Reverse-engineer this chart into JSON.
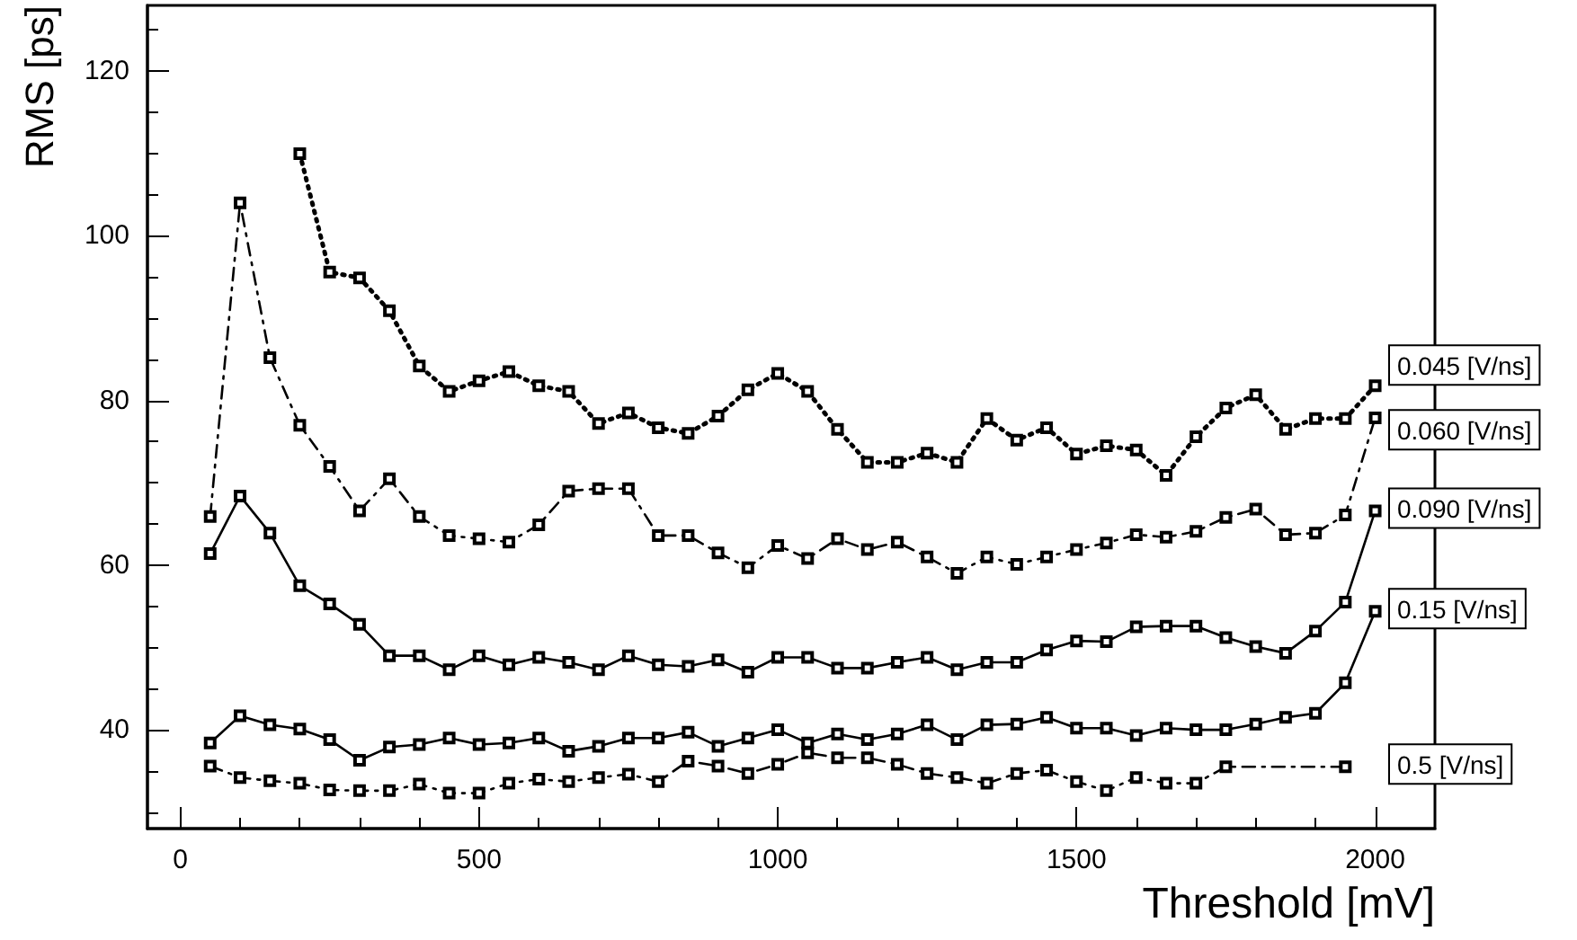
{
  "chart_data": {
    "type": "line",
    "xlabel": "Threshold [mV]",
    "ylabel": "RMS [ps]",
    "x": [
      50,
      100,
      150,
      200,
      250,
      300,
      350,
      400,
      450,
      500,
      550,
      600,
      650,
      700,
      750,
      800,
      850,
      900,
      950,
      1000,
      1050,
      1100,
      1150,
      1200,
      1250,
      1300,
      1350,
      1400,
      1450,
      1500,
      1550,
      1600,
      1650,
      1700,
      1750,
      1800,
      1850,
      1900,
      1950,
      2000
    ],
    "xlim": [
      -55,
      2100
    ],
    "xticks": [
      0,
      500,
      1000,
      1500,
      2000
    ],
    "ylim": [
      28,
      128
    ],
    "yticks": [
      40,
      60,
      80,
      100,
      120
    ],
    "grid": false,
    "legend": false,
    "marker": "square",
    "series": [
      {
        "name": "0.045 [V/ns]",
        "color": "#000000",
        "line_style": "dotted",
        "x": [
          200,
          250,
          300,
          350,
          400,
          450,
          500,
          550,
          600,
          650,
          700,
          750,
          800,
          850,
          900,
          950,
          1000,
          1050,
          1100,
          1150,
          1200,
          1250,
          1300,
          1350,
          1400,
          1450,
          1500,
          1550,
          1600,
          1650,
          1700,
          1750,
          1800,
          1850,
          1900,
          1950,
          2000
        ],
        "values": [
          110,
          95.6,
          94.9,
          90.9,
          84.2,
          81.1,
          82.4,
          83.5,
          81.8,
          81.1,
          77.2,
          78.5,
          76.7,
          76,
          78.1,
          81.3,
          83.3,
          81.1,
          76.5,
          72.5,
          72.5,
          73.6,
          72.5,
          77.8,
          75.2,
          76.7,
          73.5,
          74.5,
          74,
          70.9,
          75.6,
          79.1,
          80.7,
          76.5,
          77.8,
          77.8,
          81.8
        ]
      },
      {
        "name": "0.060 [V/ns]",
        "color": "#000000",
        "line_style": "dashed",
        "values": [
          65.9,
          104,
          85.2,
          77,
          72,
          66.6,
          70.5,
          65.9,
          63.6,
          63.2,
          62.8,
          64.9,
          69,
          69.3,
          69.3,
          63.6,
          63.6,
          61.5,
          59.7,
          62.4,
          60.8,
          63.2,
          61.9,
          62.8,
          61,
          59,
          61,
          60.1,
          61,
          61.9,
          62.7,
          63.7,
          63.4,
          64.1,
          65.8,
          66.8,
          63.7,
          63.9,
          66.1,
          77.9
        ]
      },
      {
        "name": "0.090 [V/ns]",
        "color": "#000000",
        "line_style": "solid",
        "values": [
          61.4,
          68.4,
          63.9,
          57.5,
          55.3,
          52.8,
          49,
          49,
          47.3,
          49,
          47.9,
          48.8,
          48.2,
          47.3,
          49,
          47.9,
          47.7,
          48.5,
          47,
          48.8,
          48.8,
          47.5,
          47.5,
          48.2,
          48.8,
          47.3,
          48.2,
          48.2,
          49.7,
          50.8,
          50.7,
          52.5,
          52.6,
          52.6,
          51.2,
          50.1,
          49.3,
          52,
          55.5,
          66.6
        ]
      },
      {
        "name": "0.15 [V/ns]",
        "color": "#000000",
        "line_style": "solid",
        "values": [
          38.4,
          41.7,
          40.6,
          40.1,
          38.8,
          36.3,
          37.9,
          38.2,
          39,
          38.2,
          38.4,
          39,
          37.4,
          38,
          39,
          39,
          39.7,
          38,
          39,
          40,
          38.4,
          39.5,
          38.8,
          39.5,
          40.6,
          38.8,
          40.6,
          40.7,
          41.5,
          40.2,
          40.2,
          39.3,
          40.2,
          40,
          40,
          40.7,
          41.5,
          42,
          45.7,
          54.4
        ]
      },
      {
        "name": "0.5 [V/ns]",
        "color": "#000000",
        "line_style": "dashed",
        "x": [
          50,
          100,
          150,
          200,
          250,
          300,
          350,
          400,
          450,
          500,
          550,
          600,
          650,
          700,
          750,
          800,
          850,
          900,
          950,
          1000,
          1050,
          1100,
          1150,
          1200,
          1250,
          1300,
          1350,
          1400,
          1450,
          1500,
          1550,
          1600,
          1650,
          1700,
          1750,
          1950
        ],
        "values": [
          35.6,
          34.2,
          33.8,
          33.5,
          32.7,
          32.6,
          32.6,
          33.4,
          32.3,
          32.3,
          33.5,
          34,
          33.7,
          34.2,
          34.6,
          33.7,
          36.2,
          35.6,
          34.7,
          35.8,
          37.2,
          36.6,
          36.6,
          35.8,
          34.7,
          34.2,
          33.5,
          34.7,
          35.1,
          33.7,
          32.6,
          34.2,
          33.5,
          33.5,
          35.5,
          35.5
        ]
      }
    ]
  }
}
